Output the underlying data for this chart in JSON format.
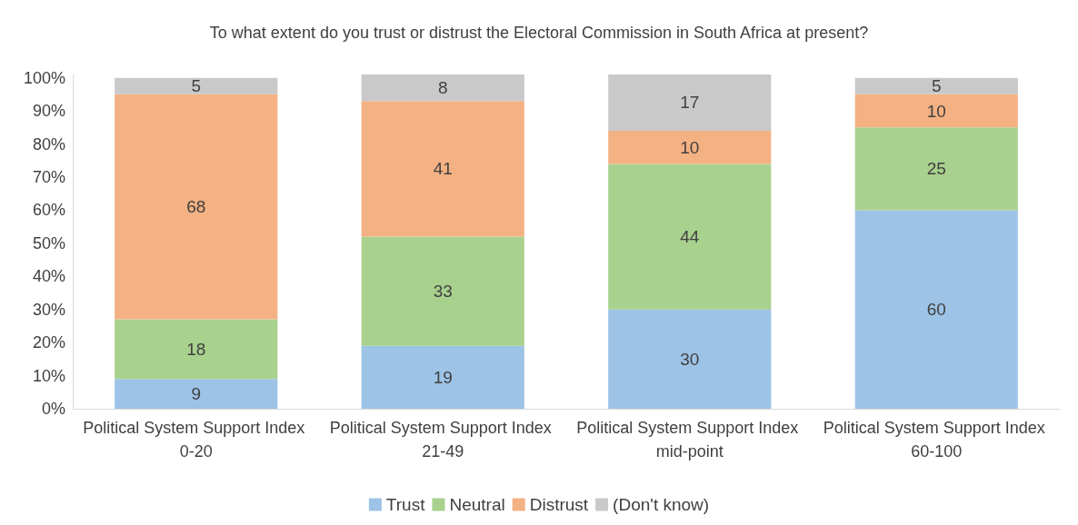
{
  "chart_data": {
    "type": "bar",
    "stacked": true,
    "title": "To what extent do you trust or distrust the Electoral Commission in South Africa at present?",
    "categories": [
      "Political System Support Index 0-20",
      "Political System Support Index 21-49",
      "Political System Support Index mid-point",
      "Political System Support Index 60-100"
    ],
    "series": [
      {
        "name": "Trust",
        "color": "#9dc3e6",
        "values": [
          9,
          19,
          30,
          60
        ]
      },
      {
        "name": "Neutral",
        "color": "#a9d18e",
        "values": [
          18,
          33,
          44,
          25
        ]
      },
      {
        "name": "Distrust",
        "color": "#f4b183",
        "values": [
          68,
          41,
          10,
          10
        ]
      },
      {
        "name": "(Don't know)",
        "color": "#c9c9c9",
        "values": [
          5,
          8,
          17,
          5
        ]
      }
    ],
    "ylim": [
      0,
      101
    ],
    "yticks": [
      {
        "value": 0,
        "label": "0%"
      },
      {
        "value": 10,
        "label": "10%"
      },
      {
        "value": 20,
        "label": "20%"
      },
      {
        "value": 30,
        "label": "30%"
      },
      {
        "value": 40,
        "label": "40%"
      },
      {
        "value": 50,
        "label": "50%"
      },
      {
        "value": 60,
        "label": "60%"
      },
      {
        "value": 70,
        "label": "70%"
      },
      {
        "value": 80,
        "label": "80%"
      },
      {
        "value": 90,
        "label": "90%"
      },
      {
        "value": 100,
        "label": "100%"
      }
    ],
    "data_labels": true,
    "legend": "bottom",
    "grid": false
  }
}
